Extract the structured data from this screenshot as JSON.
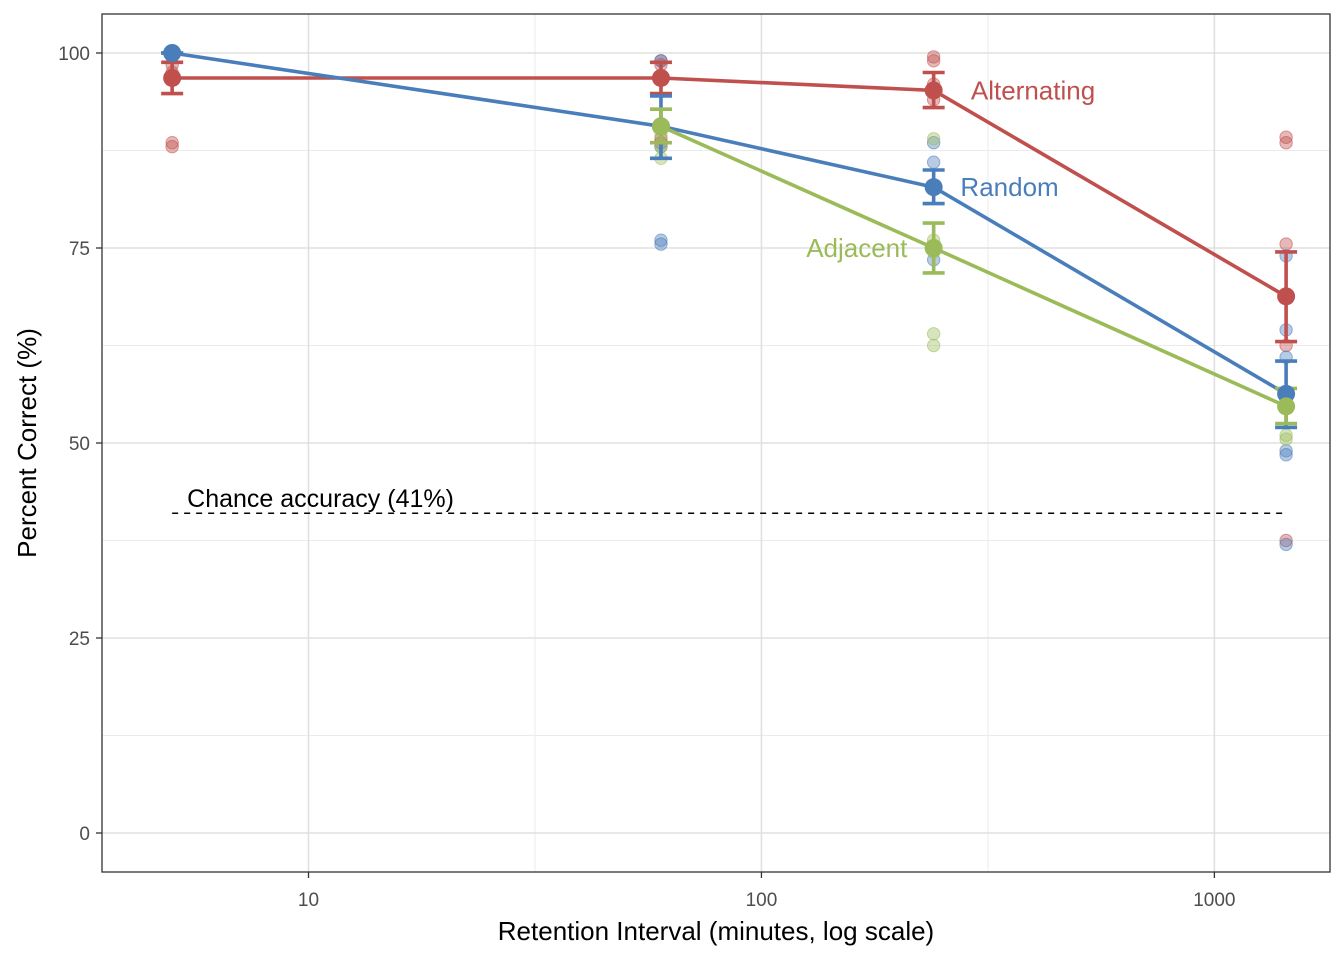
{
  "chart_data": {
    "type": "line",
    "xlabel": "Retention Interval (minutes, log scale)",
    "ylabel": "Percent Correct (%)",
    "x_scale": "log",
    "xlim": [
      3.5,
      1800
    ],
    "ylim": [
      -5,
      105
    ],
    "x_ticks": [
      10,
      100,
      1000
    ],
    "x_tick_labels": [
      "10",
      "100",
      "1000"
    ],
    "y_ticks": [
      0,
      25,
      50,
      75,
      100
    ],
    "y_tick_labels": [
      "0",
      "25",
      "50",
      "75",
      "100"
    ],
    "grid": true,
    "legend": "none",
    "chance": {
      "value": 41,
      "label": "Chance accuracy (41%)",
      "x_range": [
        5,
        1440
      ]
    },
    "series": [
      {
        "name": "Alternating",
        "color": "#c0504d",
        "x": [
          5,
          60,
          240,
          1440
        ],
        "y": [
          96.8,
          96.8,
          95.2,
          68.8
        ],
        "err_low": [
          94.8,
          94.8,
          93.0,
          63.0
        ],
        "err_high": [
          98.8,
          98.8,
          97.5,
          74.5
        ],
        "points": [
          [
            5,
            88.0
          ],
          [
            5,
            88.5
          ],
          [
            5,
            97.5
          ],
          [
            5,
            98.5
          ],
          [
            60,
            88.5
          ],
          [
            60,
            89.0
          ],
          [
            60,
            98.5
          ],
          [
            60,
            99.0
          ],
          [
            240,
            94.0
          ],
          [
            240,
            96.0
          ],
          [
            240,
            99.0
          ],
          [
            240,
            99.5
          ],
          [
            1440,
            37.5
          ],
          [
            1440,
            62.5
          ],
          [
            1440,
            75.5
          ],
          [
            1440,
            88.5
          ],
          [
            1440,
            89.2
          ]
        ]
      },
      {
        "name": "Random",
        "color": "#4a7ebb",
        "x": [
          5,
          60,
          240,
          1440
        ],
        "y": [
          100,
          90.6,
          82.8,
          56.3
        ],
        "err_low": [
          100,
          86.5,
          80.7,
          52.0
        ],
        "err_high": [
          100,
          94.5,
          85.0,
          60.5
        ],
        "points": [
          [
            5,
            100
          ],
          [
            5,
            99.5
          ],
          [
            60,
            75.5
          ],
          [
            60,
            76.0
          ],
          [
            60,
            88.0
          ],
          [
            60,
            99.0
          ],
          [
            240,
            73.5
          ],
          [
            240,
            75.0
          ],
          [
            240,
            86.0
          ],
          [
            240,
            88.5
          ],
          [
            1440,
            37.0
          ],
          [
            1440,
            48.5
          ],
          [
            1440,
            49.0
          ],
          [
            1440,
            61.0
          ],
          [
            1440,
            64.5
          ],
          [
            1440,
            74.0
          ]
        ]
      },
      {
        "name": "Adjacent",
        "color": "#9bbb59",
        "x": [
          60,
          240,
          1440
        ],
        "y": [
          90.6,
          75.0,
          54.7
        ],
        "err_low": [
          88.5,
          71.8,
          52.5
        ],
        "err_high": [
          92.8,
          78.2,
          57.0
        ],
        "points": [
          [
            60,
            86.5
          ],
          [
            60,
            88.0
          ],
          [
            60,
            89.5
          ],
          [
            240,
            62.5
          ],
          [
            240,
            64.0
          ],
          [
            240,
            74.5
          ],
          [
            240,
            76.0
          ],
          [
            240,
            89.0
          ],
          [
            1440,
            50.5
          ],
          [
            1440,
            51.0
          ],
          [
            1440,
            54.5
          ],
          [
            1440,
            55.0
          ]
        ]
      }
    ],
    "series_labels": [
      {
        "name": "Alternating",
        "x": 290,
        "y": 95.2,
        "anchor": "start"
      },
      {
        "name": "Random",
        "x": 275,
        "y": 82.8,
        "anchor": "start"
      },
      {
        "name": "Adjacent",
        "x": 210,
        "y": 75.0,
        "anchor": "end"
      }
    ]
  }
}
